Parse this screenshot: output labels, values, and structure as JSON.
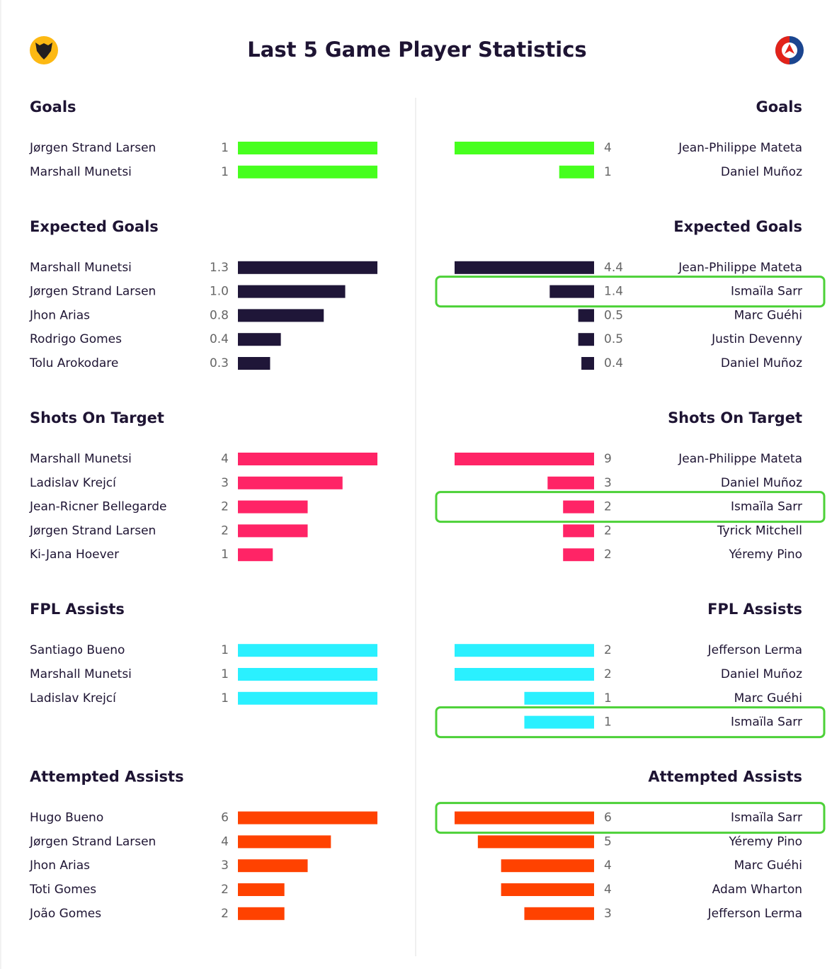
{
  "title": "Last 5 Game Player Statistics",
  "sections": [
    {
      "title": "Goals",
      "color": "#46ff1e",
      "left": [
        {
          "name": "Jørgen Strand Larsen",
          "value": 1
        },
        {
          "name": "Marshall Munetsi",
          "value": 1
        }
      ],
      "right": [
        {
          "name": "Jean-Philippe Mateta",
          "value": 4
        },
        {
          "name": "Daniel Muñoz",
          "value": 1
        }
      ]
    },
    {
      "title": "Expected Goals",
      "color": "#1f1638",
      "left": [
        {
          "name": "Marshall Munetsi",
          "value": 1.3
        },
        {
          "name": "Jørgen Strand Larsen",
          "value": 1,
          "label": "1.0"
        },
        {
          "name": "Jhon Arias",
          "value": 0.8
        },
        {
          "name": "Rodrigo Gomes",
          "value": 0.4
        },
        {
          "name": "Tolu Arokodare",
          "value": 0.3
        }
      ],
      "right": [
        {
          "name": "Jean-Philippe Mateta",
          "value": 4.4
        },
        {
          "name": "Ismaïla Sarr",
          "value": 1.4,
          "highlight": true
        },
        {
          "name": "Marc Guéhi",
          "value": 0.5
        },
        {
          "name": "Justin Devenny",
          "value": 0.5
        },
        {
          "name": "Daniel Muñoz",
          "value": 0.4
        }
      ]
    },
    {
      "title": "Shots On Target",
      "color": "#ff2466",
      "left": [
        {
          "name": "Marshall Munetsi",
          "value": 4
        },
        {
          "name": "Ladislav Krejcí",
          "value": 3
        },
        {
          "name": "Jean-Ricner Bellegarde",
          "value": 2
        },
        {
          "name": "Jørgen Strand Larsen",
          "value": 2
        },
        {
          "name": "Ki-Jana Hoever",
          "value": 1
        }
      ],
      "right": [
        {
          "name": "Jean-Philippe Mateta",
          "value": 9
        },
        {
          "name": "Daniel Muñoz",
          "value": 3
        },
        {
          "name": "Ismaïla Sarr",
          "value": 2,
          "highlight": true
        },
        {
          "name": "Tyrick Mitchell",
          "value": 2
        },
        {
          "name": "Yéremy Pino",
          "value": 2
        }
      ]
    },
    {
      "title": "FPL Assists",
      "color": "#2af0ff",
      "left": [
        {
          "name": "Santiago Bueno",
          "value": 1
        },
        {
          "name": "Marshall Munetsi",
          "value": 1
        },
        {
          "name": "Ladislav Krejcí",
          "value": 1
        }
      ],
      "right": [
        {
          "name": "Jefferson Lerma",
          "value": 2
        },
        {
          "name": "Daniel Muñoz",
          "value": 2
        },
        {
          "name": "Marc Guéhi",
          "value": 1
        },
        {
          "name": "Ismaïla Sarr",
          "value": 1,
          "highlight": true
        }
      ]
    },
    {
      "title": "Attempted Assists",
      "color": "#ff4200",
      "left": [
        {
          "name": "Hugo Bueno",
          "value": 6
        },
        {
          "name": "Jørgen Strand Larsen",
          "value": 4
        },
        {
          "name": "Jhon Arias",
          "value": 3
        },
        {
          "name": "Toti Gomes",
          "value": 2
        },
        {
          "name": "João Gomes",
          "value": 2
        }
      ],
      "right": [
        {
          "name": "Ismaïla Sarr",
          "value": 6,
          "highlight": true
        },
        {
          "name": "Yéremy Pino",
          "value": 5
        },
        {
          "name": "Marc Guéhi",
          "value": 4
        },
        {
          "name": "Adam Wharton",
          "value": 4
        },
        {
          "name": "Jefferson Lerma",
          "value": 3
        }
      ]
    }
  ]
}
